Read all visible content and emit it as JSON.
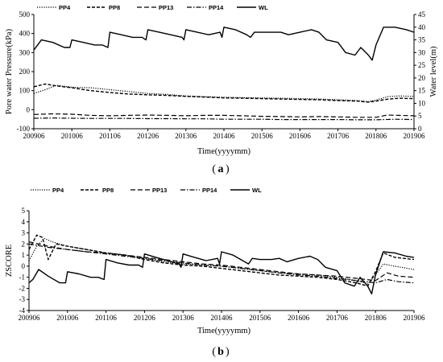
{
  "chart_data": [
    {
      "type": "line",
      "panel_label": "a",
      "xlabel": "Time(yyyymm)",
      "ylabel": "Pore water Pressure(kPa)",
      "y2label": "Water level(m)",
      "x_ticks": [
        "200906",
        "201006",
        "201106",
        "201206",
        "201306",
        "201406",
        "201506",
        "201606",
        "201706",
        "201806",
        "201906"
      ],
      "ylim": [
        -100,
        500
      ],
      "yticks": [
        -100,
        0,
        100,
        200,
        300,
        400,
        500
      ],
      "y2lim": [
        0,
        45
      ],
      "y2ticks": [
        0,
        5,
        10,
        15,
        20,
        25,
        30,
        35,
        40,
        45
      ],
      "legend": [
        "PP4",
        "PP8",
        "PP13",
        "PP14",
        "WL"
      ],
      "legend_position": "top",
      "grid": false,
      "series": [
        {
          "name": "PP4",
          "axis": "left",
          "style": "dotted",
          "x": [
            0,
            0.3,
            0.6,
            1.0,
            1.5,
            2.0,
            2.5,
            3.0,
            3.5,
            4.0,
            4.5,
            5.0,
            5.5,
            6.0,
            6.5,
            7.0,
            7.5,
            8.0,
            8.5,
            8.8,
            9.0,
            9.3,
            9.6,
            10.0
          ],
          "values": [
            85,
            105,
            128,
            118,
            115,
            105,
            95,
            85,
            80,
            72,
            68,
            65,
            63,
            62,
            60,
            58,
            56,
            52,
            48,
            42,
            50,
            68,
            72,
            70
          ]
        },
        {
          "name": "PP8",
          "axis": "left",
          "style": "dashed",
          "x": [
            0,
            0.3,
            0.6,
            1.0,
            1.5,
            2.0,
            2.5,
            3.0,
            3.5,
            4.0,
            4.5,
            5.0,
            5.5,
            6.0,
            6.5,
            7.0,
            7.5,
            8.0,
            8.5,
            8.8,
            9.0,
            9.3,
            9.6,
            10.0
          ],
          "values": [
            120,
            135,
            125,
            115,
            100,
            90,
            82,
            78,
            75,
            70,
            66,
            62,
            60,
            58,
            56,
            54,
            52,
            48,
            45,
            40,
            45,
            55,
            60,
            58
          ]
        },
        {
          "name": "PP13",
          "axis": "left",
          "style": "dashed-long",
          "x": [
            0,
            0.5,
            1.0,
            1.5,
            2.0,
            2.5,
            3.0,
            3.5,
            4.0,
            4.5,
            5.0,
            5.5,
            6.0,
            6.5,
            7.0,
            7.5,
            8.0,
            8.5,
            9.0,
            9.3,
            9.6,
            10.0
          ],
          "values": [
            -25,
            -22,
            -24,
            -30,
            -32,
            -30,
            -28,
            -30,
            -32,
            -30,
            -30,
            -32,
            -35,
            -36,
            -38,
            -36,
            -38,
            -40,
            -40,
            -28,
            -30,
            -32
          ]
        },
        {
          "name": "PP14",
          "axis": "left",
          "style": "dash-dot",
          "x": [
            0,
            0.5,
            1.0,
            1.5,
            2.0,
            2.5,
            3.0,
            3.5,
            4.0,
            4.5,
            5.0,
            5.5,
            6.0,
            6.5,
            7.0,
            7.5,
            8.0,
            8.5,
            9.0,
            9.5,
            10.0
          ],
          "values": [
            -45,
            -44,
            -45,
            -46,
            -46,
            -46,
            -47,
            -47,
            -48,
            -48,
            -50,
            -50,
            -50,
            -52,
            -52,
            -52,
            -52,
            -53,
            -53,
            -50,
            -52
          ]
        },
        {
          "name": "WL",
          "axis": "right",
          "style": "solid",
          "x": [
            0,
            0.1,
            0.2,
            0.5,
            0.8,
            0.95,
            1.0,
            1.3,
            1.6,
            1.8,
            1.95,
            2.0,
            2.3,
            2.6,
            2.85,
            2.95,
            3.0,
            3.3,
            3.6,
            3.9,
            3.95,
            4.0,
            4.3,
            4.6,
            4.9,
            4.95,
            5.0,
            5.3,
            5.6,
            5.7,
            5.8,
            6.0,
            6.3,
            6.5,
            6.7,
            7.0,
            7.3,
            7.5,
            7.7,
            8.0,
            8.2,
            8.45,
            8.6,
            8.8,
            8.9,
            9.0,
            9.2,
            9.5,
            9.8,
            10.0
          ],
          "values": [
            31,
            33,
            35,
            34,
            32,
            32,
            35,
            34,
            33,
            33,
            32,
            38,
            37,
            36,
            36,
            35,
            39,
            38,
            37,
            36,
            35,
            39,
            38,
            37,
            38,
            36,
            40,
            39,
            37,
            36,
            38,
            38,
            38,
            38,
            37,
            38,
            39,
            38,
            35,
            34,
            30,
            29,
            32,
            29,
            27,
            33,
            40,
            40,
            39,
            38
          ]
        }
      ]
    },
    {
      "type": "line",
      "panel_label": "b",
      "xlabel": "Time(yyyymm)",
      "ylabel": "ZSCORE",
      "x_ticks": [
        "200906",
        "201006",
        "201106",
        "201206",
        "201306",
        "201406",
        "201506",
        "201606",
        "201706",
        "201806",
        "201906"
      ],
      "ylim": [
        -4,
        5
      ],
      "yticks": [
        -4,
        -3,
        -2,
        -1,
        0,
        1,
        2,
        3,
        4,
        5
      ],
      "legend": [
        "PP4",
        "PP8",
        "PP13",
        "PP14",
        "WL"
      ],
      "legend_position": "top",
      "grid": false,
      "series": [
        {
          "name": "PP4",
          "style": "dotted",
          "x": [
            0,
            0.2,
            0.4,
            0.6,
            1.0,
            1.5,
            2.0,
            2.5,
            3.0,
            3.5,
            4.0,
            4.5,
            5.0,
            5.5,
            6.0,
            6.5,
            7.0,
            7.5,
            8.0,
            8.5,
            8.8,
            9.0,
            9.2,
            9.5,
            10.0
          ],
          "values": [
            0.5,
            1.8,
            2.5,
            2.2,
            1.8,
            1.5,
            1.2,
            1.0,
            0.7,
            0.4,
            0.2,
            0.1,
            0.0,
            -0.2,
            -0.4,
            -0.6,
            -0.7,
            -0.8,
            -1.0,
            -1.3,
            -1.6,
            -0.8,
            0.2,
            0.0,
            -0.3
          ]
        },
        {
          "name": "PP8",
          "style": "dashed",
          "x": [
            0,
            0.2,
            0.35,
            0.5,
            0.7,
            1.0,
            1.5,
            2.0,
            2.5,
            3.0,
            3.5,
            4.0,
            4.5,
            5.0,
            5.5,
            6.0,
            6.5,
            7.0,
            7.5,
            8.0,
            8.5,
            8.8,
            9.0,
            9.2,
            9.5,
            10.0
          ],
          "values": [
            1.5,
            2.8,
            2.6,
            0.6,
            2.0,
            1.8,
            1.5,
            1.2,
            1.0,
            0.6,
            0.3,
            0.1,
            0.0,
            -0.2,
            -0.4,
            -0.6,
            -0.8,
            -0.9,
            -1.0,
            -1.2,
            -1.5,
            -1.8,
            -0.5,
            1.2,
            0.8,
            0.6
          ]
        },
        {
          "name": "PP13",
          "style": "dashed-long",
          "x": [
            0,
            0.5,
            1.0,
            1.5,
            2.0,
            2.5,
            3.0,
            3.5,
            4.0,
            4.5,
            5.0,
            5.5,
            6.0,
            6.5,
            7.0,
            7.5,
            8.0,
            8.5,
            9.0,
            9.3,
            9.6,
            10.0
          ],
          "values": [
            2.2,
            1.8,
            1.5,
            1.3,
            1.2,
            1.0,
            0.8,
            0.6,
            0.4,
            0.2,
            0.1,
            -0.1,
            -0.3,
            -0.5,
            -0.7,
            -0.8,
            -0.9,
            -1.1,
            -1.3,
            -0.6,
            -0.9,
            -1.0
          ]
        },
        {
          "name": "PP14",
          "style": "dash-dot",
          "x": [
            0,
            0.5,
            1.0,
            1.5,
            2.0,
            2.5,
            3.0,
            3.5,
            4.0,
            4.5,
            5.0,
            5.5,
            6.0,
            6.5,
            7.0,
            7.5,
            8.0,
            8.5,
            9.0,
            9.3,
            9.6,
            10.0
          ],
          "values": [
            2.0,
            1.7,
            1.5,
            1.3,
            1.1,
            0.9,
            0.7,
            0.5,
            0.3,
            0.1,
            0.0,
            -0.2,
            -0.4,
            -0.6,
            -0.8,
            -0.9,
            -1.1,
            -1.3,
            -1.5,
            -1.2,
            -1.4,
            -1.5
          ]
        },
        {
          "name": "WL",
          "style": "solid",
          "x": [
            0,
            0.1,
            0.25,
            0.5,
            0.8,
            0.95,
            1.0,
            1.3,
            1.6,
            1.8,
            1.95,
            2.0,
            2.3,
            2.6,
            2.85,
            2.95,
            3.0,
            3.3,
            3.6,
            3.9,
            3.95,
            4.0,
            4.3,
            4.6,
            4.9,
            4.95,
            5.0,
            5.3,
            5.6,
            5.7,
            5.8,
            6.0,
            6.3,
            6.5,
            6.7,
            7.0,
            7.3,
            7.5,
            7.7,
            8.0,
            8.2,
            8.45,
            8.6,
            8.8,
            8.9,
            9.0,
            9.2,
            9.5,
            9.8,
            10.0
          ],
          "values": [
            -1.5,
            -1.2,
            -0.3,
            -0.9,
            -1.5,
            -1.5,
            -0.5,
            -0.7,
            -1.0,
            -1.0,
            -1.2,
            0.6,
            0.3,
            0.1,
            0.1,
            -0.1,
            1.1,
            0.8,
            0.5,
            0.2,
            -0.1,
            1.1,
            0.8,
            0.5,
            0.7,
            0.2,
            1.3,
            1.0,
            0.4,
            0.2,
            0.7,
            0.6,
            0.6,
            0.7,
            0.4,
            0.7,
            0.9,
            0.6,
            -0.1,
            -0.4,
            -1.5,
            -1.8,
            -1.0,
            -1.8,
            -2.5,
            -0.8,
            1.3,
            1.2,
            0.9,
            0.8
          ]
        }
      ]
    }
  ]
}
